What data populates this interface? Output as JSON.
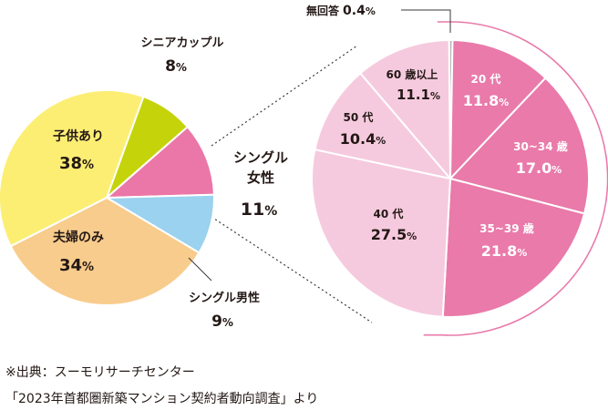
{
  "chart_data": [
    {
      "type": "pie",
      "slices": [
        {
          "label": "シニアカップル",
          "value": 8,
          "display": "8",
          "unit": "%",
          "color": "#c5d40a"
        },
        {
          "label": "シングル女性",
          "value": 11,
          "display": "11",
          "unit": "%",
          "color": "#ea77a8"
        },
        {
          "label": "シングル男性",
          "value": 9,
          "display": "9",
          "unit": "%",
          "color": "#9ad2ef"
        },
        {
          "label": "夫婦のみ",
          "value": 34,
          "display": "34",
          "unit": "%",
          "color": "#f8cc8c"
        },
        {
          "label": "子供あり",
          "value": 38,
          "display": "38",
          "unit": "%",
          "color": "#fcee73"
        }
      ]
    },
    {
      "type": "pie",
      "slices": [
        {
          "label": "無回答",
          "value": 0.4,
          "display": "0.4",
          "unit": "%",
          "color": "#b5b5b5"
        },
        {
          "label": "20 代",
          "value": 11.8,
          "display": "11.8",
          "unit": "%",
          "color": "#e97aaa"
        },
        {
          "label": "30~34 歳",
          "value": 17.0,
          "display": "17.0",
          "unit": "%",
          "color": "#e97aaa"
        },
        {
          "label": "35~39 歳",
          "value": 21.8,
          "display": "21.8",
          "unit": "%",
          "color": "#e97aaa"
        },
        {
          "label": "40 代",
          "value": 27.5,
          "display": "27.5",
          "unit": "%",
          "color": "#f6cade"
        },
        {
          "label": "50 代",
          "value": 10.4,
          "display": "10.4",
          "unit": "%",
          "color": "#f6cade"
        },
        {
          "label": "60 歳以上",
          "value": 11.1,
          "display": "11.1",
          "unit": "%",
          "color": "#f6cade"
        }
      ]
    }
  ],
  "source": {
    "line1": "※出典：スーモリサーチセンター",
    "line2": "「2023年首都圏新築マンション契約者動向調査」より"
  }
}
